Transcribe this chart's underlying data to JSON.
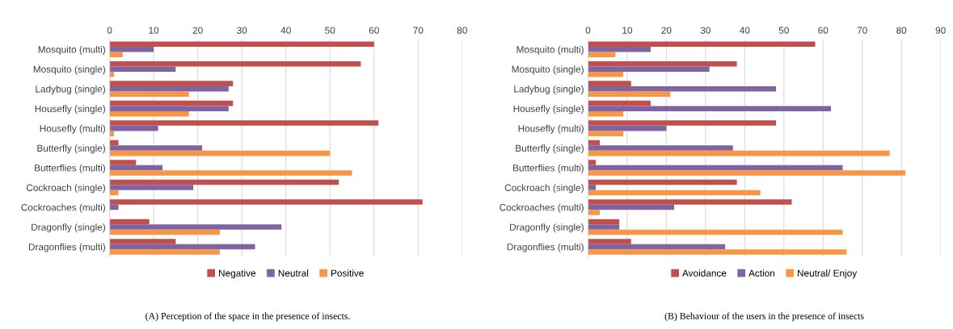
{
  "chart_data": [
    {
      "type": "bar",
      "orientation": "horizontal",
      "categories": [
        "Mosquito (multi)",
        "Mosquito (single)",
        "Ladybug (single)",
        "Housefly (single)",
        "Housefly (multi)",
        "Butterfly (single)",
        "Butterflies (multi)",
        "Cockroach (single)",
        "Cockroaches (multi)",
        "Dragonfly (single)",
        "Dragonflies (multi)"
      ],
      "series": [
        {
          "name": "Negative",
          "color": "#c0504d",
          "values": [
            60,
            57,
            28,
            28,
            61,
            2,
            6,
            52,
            71,
            9,
            15
          ]
        },
        {
          "name": "Neutral",
          "color": "#8064a2",
          "values": [
            10,
            15,
            27,
            27,
            11,
            21,
            12,
            19,
            2,
            39,
            33
          ]
        },
        {
          "name": "Positive",
          "color": "#f79646",
          "values": [
            3,
            1,
            18,
            18,
            1,
            50,
            55,
            2,
            0,
            25,
            25
          ]
        }
      ],
      "xlim": [
        0,
        80
      ],
      "xticks": [
        0,
        10,
        20,
        30,
        40,
        50,
        60,
        70,
        80
      ],
      "grid": "x",
      "legend": "bottom",
      "annotations": [
        "(A) Perception of the space in the presence of insects."
      ]
    },
    {
      "type": "bar",
      "orientation": "horizontal",
      "categories": [
        "Mosquito (multi)",
        "Mosquito (single)",
        "Ladybug (single)",
        "Housefly (single)",
        "Housefly (multi)",
        "Butterfly (single)",
        "Butterflies (multi)",
        "Cockroach (single)",
        "Cockroaches (multi)",
        "Dragonfly (single)",
        "Dragonflies (multi)"
      ],
      "series": [
        {
          "name": "Avoidance",
          "color": "#c0504d",
          "values": [
            58,
            38,
            11,
            16,
            48,
            3,
            2,
            38,
            52,
            8,
            11
          ]
        },
        {
          "name": "Action",
          "color": "#8064a2",
          "values": [
            16,
            31,
            48,
            62,
            20,
            37,
            65,
            2,
            22,
            8,
            35
          ]
        },
        {
          "name": "Neutral/ Enjoy",
          "color": "#f79646",
          "values": [
            7,
            9,
            21,
            9,
            9,
            77,
            81,
            44,
            3,
            65,
            66
          ]
        }
      ],
      "xlim": [
        0,
        90
      ],
      "xticks": [
        0,
        10,
        20,
        30,
        40,
        50,
        60,
        70,
        80,
        90
      ],
      "grid": "x",
      "legend": "bottom",
      "annotations": [
        "(B) Behaviour of the users in the presence of insects"
      ]
    }
  ]
}
